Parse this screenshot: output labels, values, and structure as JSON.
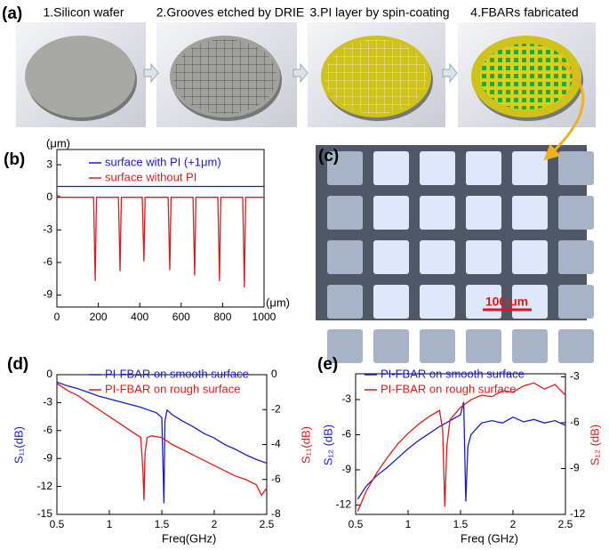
{
  "panel_a": {
    "label": "(a)",
    "steps": [
      "1.Silicon wafer",
      "2.Grooves etched by DRIE",
      "3.PI layer by spin-coating",
      "4.FBARs fabricated"
    ]
  },
  "panel_c": {
    "label": "(c)",
    "scale_bar": "100 μm"
  },
  "chart_data": [
    {
      "type": "line",
      "label": "(b)",
      "x_label": "(μm)",
      "y_label": "(μm)",
      "xlim": [
        0,
        1000
      ],
      "xticks": [
        0,
        200,
        400,
        600,
        800,
        1000
      ],
      "ylim": [
        -10.1,
        4.4
      ],
      "yticks": [
        -9,
        -6,
        -3,
        0,
        3
      ],
      "series": [
        {
          "name": "surface with PI (+1μm)",
          "color": "#1a1acc",
          "x": [
            0,
            1000
          ],
          "values": [
            1,
            1
          ]
        },
        {
          "name": "surface without  PI",
          "color": "#dd1a1a",
          "x": [
            0,
            20,
            177,
            185,
            191,
            297,
            305,
            311,
            412,
            420,
            426,
            537,
            545,
            551,
            657,
            665,
            671,
            777,
            785,
            791,
            897,
            905,
            911,
            1000
          ],
          "values": [
            0.2,
            0,
            0,
            -7.7,
            0,
            0,
            -6.8,
            0,
            0,
            -5.9,
            0,
            0,
            -6.7,
            0,
            0,
            -7.2,
            0,
            0,
            -7.7,
            0,
            0,
            -8.3,
            0,
            0
          ]
        }
      ]
    },
    {
      "type": "line",
      "label": "(d)",
      "x_label": "Freq(GHz)",
      "y_label": "S₁₁(dB)",
      "y2_label": "S₁₁(dB)",
      "xlim": [
        0.5,
        2.5
      ],
      "xticks": [
        0.5,
        1.0,
        1.5,
        2.0,
        2.5
      ],
      "ylim": [
        -15,
        0
      ],
      "yticks": [
        -15,
        -12,
        -9,
        -6,
        -3,
        0
      ],
      "y2lim": [
        -8,
        0
      ],
      "y2ticks": [
        -8,
        -6,
        -4,
        -2,
        0
      ],
      "series": [
        {
          "name": "PI-FBAR on smooth surface",
          "color": "#1a1acc",
          "x": [
            0.5,
            0.6,
            0.7,
            0.8,
            0.9,
            1.0,
            1.1,
            1.2,
            1.3,
            1.4,
            1.45,
            1.5,
            1.52,
            1.53,
            1.55,
            1.6,
            1.7,
            1.8,
            1.9,
            2.0,
            2.1,
            2.2,
            2.3,
            2.4,
            2.5
          ],
          "values": [
            -0.8,
            -1.2,
            -1.5,
            -1.9,
            -2.3,
            -2.6,
            -2.9,
            -3.2,
            -3.5,
            -3.9,
            -4.1,
            -4.6,
            -13.8,
            -5,
            -3.8,
            -4.3,
            -5,
            -5.6,
            -6.3,
            -6.8,
            -7.5,
            -8,
            -8.6,
            -9.1,
            -9.5
          ]
        },
        {
          "name": "PI-FBAR on rough surface",
          "color": "#dd1a1a",
          "axis": "y2",
          "x": [
            0.5,
            0.6,
            0.7,
            0.8,
            0.9,
            1.0,
            1.1,
            1.2,
            1.25,
            1.3,
            1.32,
            1.33,
            1.34,
            1.36,
            1.4,
            1.5,
            1.6,
            1.7,
            1.8,
            1.9,
            2.0,
            2.1,
            2.2,
            2.3,
            2.4,
            2.45,
            2.5
          ],
          "values": [
            -0.5,
            -0.9,
            -1.2,
            -1.6,
            -2.0,
            -2.4,
            -2.8,
            -3.2,
            -3.4,
            -3.6,
            -5.5,
            -7.2,
            -4.5,
            -3.6,
            -3.5,
            -3.6,
            -4.0,
            -4.3,
            -4.6,
            -4.9,
            -5.2,
            -5.5,
            -5.8,
            -6.0,
            -6.3,
            -6.9,
            -6.5
          ]
        }
      ]
    },
    {
      "type": "line",
      "label": "(e)",
      "x_label": "Freq (GHz)",
      "y_label": "S₁₂ (dB)",
      "y2_label": "S₁₂ (dB)",
      "xlim": [
        0.5,
        2.5
      ],
      "xticks": [
        0.5,
        1.0,
        1.5,
        2.0,
        2.5
      ],
      "ylim": [
        -12.8,
        -0.8
      ],
      "yticks": [
        -12,
        -9,
        -6,
        -3
      ],
      "y2lim": [
        -12,
        -2.8
      ],
      "y2ticks": [
        -12,
        -9,
        -6,
        -3
      ],
      "series": [
        {
          "name": "PI-FBAR on smooth surface",
          "color": "#1a1acc",
          "x": [
            0.52,
            0.6,
            0.7,
            0.8,
            0.9,
            1.0,
            1.1,
            1.2,
            1.3,
            1.4,
            1.5,
            1.53,
            1.55,
            1.57,
            1.6,
            1.7,
            1.8,
            1.9,
            2.0,
            2.1,
            2.2,
            2.3,
            2.4,
            2.5
          ],
          "values": [
            -11.5,
            -10.4,
            -9.5,
            -8.8,
            -8.0,
            -7.2,
            -6.5,
            -5.9,
            -5.3,
            -4.8,
            -4.3,
            -3.2,
            -11.7,
            -7.0,
            -6.0,
            -5.0,
            -4.8,
            -5.0,
            -4.5,
            -4.9,
            -4.7,
            -5.0,
            -4.8,
            -5.2
          ]
        },
        {
          "name": "PI-FBAR on rough surface",
          "color": "#dd1a1a",
          "axis": "y2",
          "x": [
            0.52,
            0.6,
            0.7,
            0.8,
            0.9,
            1.0,
            1.1,
            1.2,
            1.3,
            1.33,
            1.35,
            1.37,
            1.4,
            1.45,
            1.5,
            1.6,
            1.7,
            1.8,
            1.9,
            2.0,
            2.1,
            2.2,
            2.3,
            2.4,
            2.5
          ],
          "values": [
            -11.8,
            -10.5,
            -9.3,
            -8.3,
            -7.4,
            -6.7,
            -6.1,
            -5.6,
            -5.2,
            -6.5,
            -11.5,
            -7.5,
            -5.8,
            -5.4,
            -5.0,
            -4.5,
            -4.2,
            -4.3,
            -3.9,
            -4.0,
            -3.6,
            -3.4,
            -3.8,
            -3.5,
            -4.2
          ]
        }
      ]
    }
  ]
}
